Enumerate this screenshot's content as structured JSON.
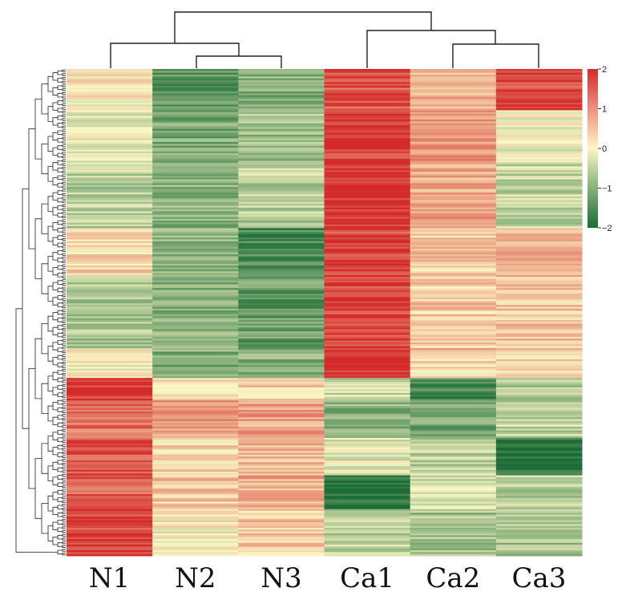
{
  "chart_data": {
    "type": "heatmap",
    "title": "",
    "xlabel": "",
    "ylabel": "",
    "columns": [
      "N1",
      "N2",
      "N3",
      "Ca1",
      "Ca2",
      "Ca3"
    ],
    "color_scale": {
      "min": -2,
      "max": 2,
      "ticks": [
        2,
        1,
        0,
        -1,
        -2
      ],
      "tick_labels": [
        "2",
        "1",
        "0",
        "−1",
        "−2"
      ],
      "low_color": "#1a6b35",
      "mid_color": "#fbf7c5",
      "high_color": "#d42a2a"
    },
    "column_dendrogram": {
      "clusters": [
        [
          "N1",
          [
            "N2",
            "N3"
          ]
        ],
        [
          "Ca1",
          [
            "Ca2",
            "Ca3"
          ]
        ]
      ]
    },
    "row_dendrogram": true,
    "row_blocks": [
      {
        "rows": 22,
        "values": [
          0.1,
          -1.4,
          -1.0,
          1.6,
          0.6,
          1.7
        ]
      },
      {
        "rows": 28,
        "values": [
          -0.2,
          -1.1,
          -0.8,
          1.8,
          1.0,
          -0.1
        ]
      },
      {
        "rows": 35,
        "values": [
          -0.6,
          -1.0,
          -0.6,
          2.0,
          0.8,
          -0.5
        ]
      },
      {
        "rows": 25,
        "values": [
          0.3,
          -0.9,
          -1.6,
          1.7,
          0.4,
          0.6
        ]
      },
      {
        "rows": 40,
        "values": [
          -0.7,
          -1.0,
          -1.3,
          1.8,
          0.5,
          0.5
        ]
      },
      {
        "rows": 15,
        "values": [
          0.0,
          -1.1,
          -1.0,
          2.0,
          0.3,
          0.2
        ]
      },
      {
        "rows": 12,
        "values": [
          1.9,
          0.1,
          0.4,
          -0.4,
          -1.6,
          -0.6
        ]
      },
      {
        "rows": 20,
        "values": [
          1.3,
          0.9,
          0.8,
          -1.0,
          -1.2,
          -0.5
        ]
      },
      {
        "rows": 20,
        "values": [
          1.6,
          0.3,
          0.6,
          -0.2,
          -0.5,
          -1.9
        ]
      },
      {
        "rows": 18,
        "values": [
          1.4,
          0.5,
          0.7,
          -1.8,
          -0.4,
          -0.6
        ]
      },
      {
        "rows": 25,
        "values": [
          1.8,
          0.1,
          0.4,
          -0.5,
          -0.8,
          -0.7
        ]
      }
    ]
  }
}
